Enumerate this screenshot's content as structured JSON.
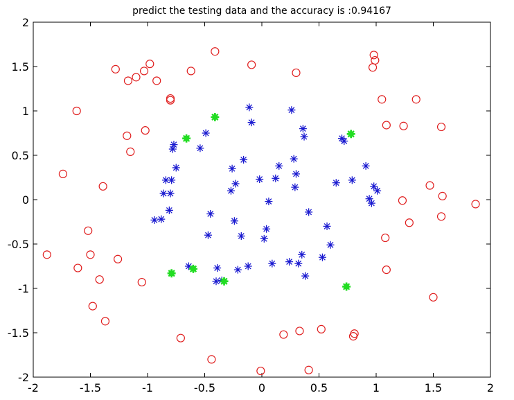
{
  "chart_data": {
    "type": "scatter",
    "title": "predict the testing data and the accuracy is :0.94167",
    "xlabel": "",
    "ylabel": "",
    "xlim": [
      -2,
      2
    ],
    "ylim": [
      -2,
      2
    ],
    "x_ticks": [
      -2,
      -1.5,
      -1,
      -0.5,
      0,
      0.5,
      1,
      1.5,
      2
    ],
    "y_ticks": [
      -2,
      -1.5,
      -1,
      -0.5,
      0,
      0.5,
      1,
      1.5,
      2
    ],
    "grid": false,
    "series": [
      {
        "marker": "circle",
        "color": "#e01e1e",
        "points": [
          [
            -1.88,
            -0.62
          ],
          [
            -1.74,
            0.29
          ],
          [
            -1.62,
            1.0
          ],
          [
            -1.61,
            -0.77
          ],
          [
            -1.52,
            -0.35
          ],
          [
            -1.5,
            -0.62
          ],
          [
            -1.48,
            -1.2
          ],
          [
            -1.42,
            -0.9
          ],
          [
            -1.39,
            0.15
          ],
          [
            -1.37,
            -1.37
          ],
          [
            -1.28,
            1.47
          ],
          [
            -1.26,
            -0.67
          ],
          [
            -1.18,
            0.72
          ],
          [
            -1.17,
            1.34
          ],
          [
            -1.15,
            0.54
          ],
          [
            -1.1,
            1.38
          ],
          [
            -1.05,
            -0.93
          ],
          [
            -1.03,
            1.45
          ],
          [
            -1.02,
            0.78
          ],
          [
            -0.98,
            1.53
          ],
          [
            -0.92,
            1.34
          ],
          [
            -0.8,
            1.14
          ],
          [
            -0.8,
            1.12
          ],
          [
            -0.71,
            -1.56
          ],
          [
            -0.62,
            1.45
          ],
          [
            -0.44,
            -1.8
          ],
          [
            -0.41,
            1.67
          ],
          [
            -0.09,
            1.52
          ],
          [
            -0.01,
            -1.93
          ],
          [
            0.19,
            -1.52
          ],
          [
            0.3,
            1.43
          ],
          [
            0.33,
            -1.48
          ],
          [
            0.41,
            -1.92
          ],
          [
            0.52,
            -1.46
          ],
          [
            0.8,
            -1.54
          ],
          [
            0.81,
            -1.51
          ],
          [
            0.97,
            1.49
          ],
          [
            0.98,
            1.63
          ],
          [
            0.99,
            1.57
          ],
          [
            1.05,
            1.13
          ],
          [
            1.08,
            -0.43
          ],
          [
            1.09,
            0.84
          ],
          [
            1.09,
            -0.79
          ],
          [
            1.23,
            -0.01
          ],
          [
            1.24,
            0.83
          ],
          [
            1.29,
            -0.26
          ],
          [
            1.35,
            1.13
          ],
          [
            1.47,
            0.16
          ],
          [
            1.5,
            -1.1
          ],
          [
            1.57,
            0.82
          ],
          [
            1.57,
            -0.19
          ],
          [
            1.58,
            0.04
          ],
          [
            1.87,
            -0.05
          ]
        ]
      },
      {
        "marker": "star",
        "color": "#1a1ad0",
        "points": [
          [
            -0.94,
            -0.23
          ],
          [
            -0.88,
            -0.22
          ],
          [
            -0.86,
            0.07
          ],
          [
            -0.84,
            0.22
          ],
          [
            -0.81,
            -0.12
          ],
          [
            -0.8,
            0.07
          ],
          [
            -0.79,
            0.22
          ],
          [
            -0.78,
            0.57
          ],
          [
            -0.77,
            0.62
          ],
          [
            -0.75,
            0.36
          ],
          [
            -0.64,
            -0.75
          ],
          [
            -0.54,
            0.58
          ],
          [
            -0.49,
            0.75
          ],
          [
            -0.47,
            -0.4
          ],
          [
            -0.45,
            -0.16
          ],
          [
            -0.4,
            -0.92
          ],
          [
            -0.39,
            -0.77
          ],
          [
            -0.35,
            -0.91
          ],
          [
            -0.27,
            0.1
          ],
          [
            -0.26,
            0.35
          ],
          [
            -0.24,
            -0.24
          ],
          [
            -0.23,
            0.18
          ],
          [
            -0.21,
            -0.79
          ],
          [
            -0.18,
            -0.41
          ],
          [
            -0.16,
            0.45
          ],
          [
            -0.12,
            -0.75
          ],
          [
            -0.11,
            1.04
          ],
          [
            -0.09,
            0.87
          ],
          [
            -0.02,
            0.23
          ],
          [
            0.02,
            -0.44
          ],
          [
            0.04,
            -0.33
          ],
          [
            0.06,
            -0.02
          ],
          [
            0.09,
            -0.72
          ],
          [
            0.12,
            0.24
          ],
          [
            0.15,
            0.38
          ],
          [
            0.24,
            -0.7
          ],
          [
            0.26,
            1.01
          ],
          [
            0.28,
            0.46
          ],
          [
            0.29,
            0.14
          ],
          [
            0.3,
            0.29
          ],
          [
            0.32,
            -0.72
          ],
          [
            0.35,
            -0.62
          ],
          [
            0.36,
            0.8
          ],
          [
            0.37,
            0.71
          ],
          [
            0.38,
            -0.86
          ],
          [
            0.41,
            -0.14
          ],
          [
            0.53,
            -0.65
          ],
          [
            0.57,
            -0.3
          ],
          [
            0.6,
            -0.51
          ],
          [
            0.65,
            0.19
          ],
          [
            0.7,
            0.69
          ],
          [
            0.72,
            0.66
          ],
          [
            0.79,
            0.22
          ],
          [
            0.91,
            0.38
          ],
          [
            0.94,
            0.01
          ],
          [
            0.96,
            -0.04
          ],
          [
            0.98,
            0.15
          ],
          [
            1.01,
            0.1
          ]
        ]
      },
      {
        "marker": "star-filled",
        "color": "#22dd22",
        "points": [
          [
            -0.79,
            -0.83
          ],
          [
            -0.66,
            0.69
          ],
          [
            -0.6,
            -0.78
          ],
          [
            -0.33,
            -0.92
          ],
          [
            -0.41,
            0.93
          ],
          [
            0.74,
            -0.98
          ],
          [
            0.78,
            0.74
          ]
        ]
      }
    ]
  }
}
